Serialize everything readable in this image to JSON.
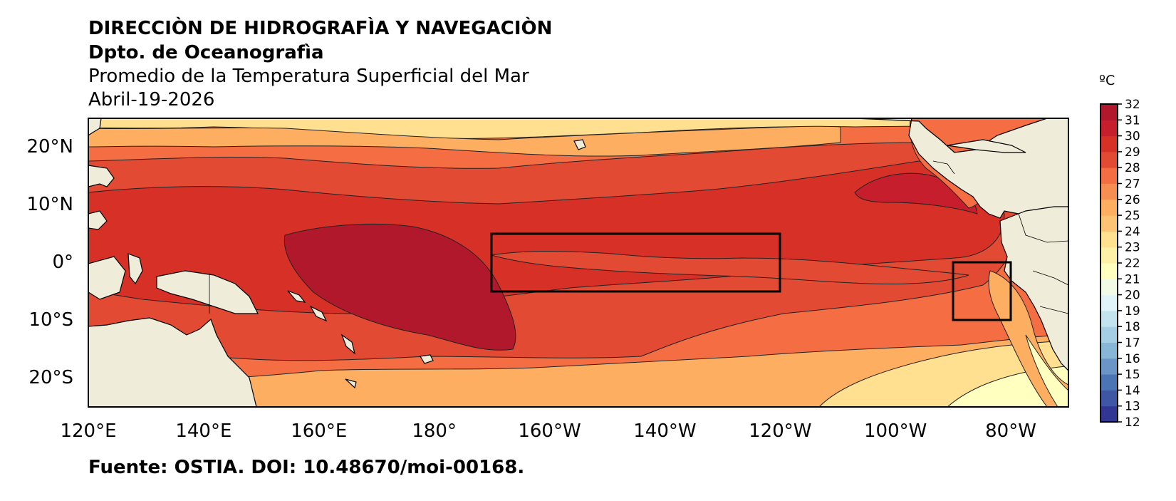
{
  "header": {
    "line1": "DIRECCIÒN DE HIDROGRAFÌA Y NAVEGACIÒN",
    "line2": "Dpto. de Oceanografìa",
    "line3": "Promedio de la Temperatura Superficial del Mar",
    "date": "Abril-19-2026"
  },
  "source": "Fuente: OSTIA. DOI: 10.48670/moi-00168.",
  "map": {
    "lon_ticks": [
      "120°E",
      "140°E",
      "160°E",
      "180°",
      "160°W",
      "140°W",
      "120°W",
      "100°W",
      "80°W"
    ],
    "lat_ticks": [
      "20°N",
      "10°N",
      "0°",
      "10°S",
      "20°S"
    ],
    "extent_lon": [
      120,
      290
    ],
    "extent_lat": [
      -25,
      25
    ],
    "regions": [
      {
        "name": "Niño 3.4",
        "lon": [
          190,
          240
        ],
        "lat": [
          -5,
          5
        ]
      },
      {
        "name": "Niño 1+2",
        "lon": [
          270,
          280
        ],
        "lat": [
          -10,
          0
        ]
      }
    ],
    "land_color": "#efedda"
  },
  "colorbar": {
    "unit": "ºC",
    "min": 12,
    "max": 32,
    "ticks": [
      "12",
      "13",
      "14",
      "15",
      "16",
      "17",
      "18",
      "19",
      "20",
      "21",
      "22",
      "23",
      "24",
      "25",
      "26",
      "27",
      "28",
      "29",
      "30",
      "31",
      "32"
    ],
    "colors": [
      "#313695",
      "#3f56a4",
      "#4a74b4",
      "#6a95c6",
      "#87b6d7",
      "#a5cde3",
      "#c3e4ee",
      "#e0f3f8",
      "#f2f9e4",
      "#ffffbf",
      "#fff0a8",
      "#fee090",
      "#fdc374",
      "#fdae61",
      "#f88d52",
      "#f46d43",
      "#e34a33",
      "#d73027",
      "#c61e2c",
      "#b2182b"
    ]
  }
}
